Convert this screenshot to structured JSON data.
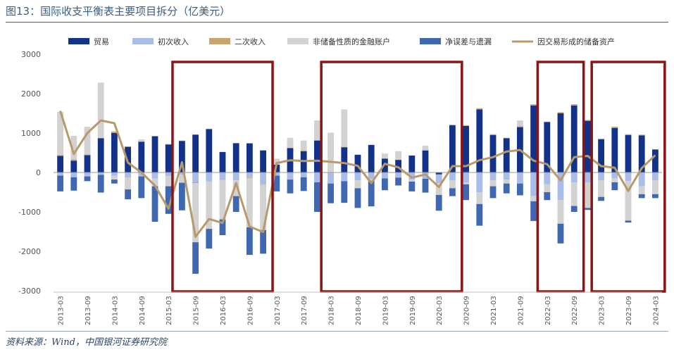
{
  "title": "图13：国际收支平衡表主要项目拆分（亿美元）",
  "source": "资料来源：Wind，中国银河证券研究院",
  "colors": {
    "trade": "#13328a",
    "primary_income": "#a9bde8",
    "secondary_income": "#c8a570",
    "financial": "#d2d2d2",
    "errors": "#3f68b0",
    "reserves_line": "#b9986a",
    "highlight_box": "#8b1414",
    "axis": "#bfbfbf"
  },
  "chart_data": {
    "type": "bar",
    "stacked": true,
    "ylim": [
      -3000,
      3000
    ],
    "yticks": [
      3000,
      2000,
      1000,
      0,
      -1000,
      -2000,
      -3000
    ],
    "legend_position": "top",
    "grid": false,
    "categories": [
      "2013-03",
      "2013-06",
      "2013-09",
      "2013-12",
      "2014-03",
      "2014-06",
      "2014-09",
      "2014-12",
      "2015-03",
      "2015-06",
      "2015-09",
      "2015-12",
      "2016-03",
      "2016-06",
      "2016-09",
      "2016-12",
      "2017-03",
      "2017-06",
      "2017-09",
      "2017-12",
      "2018-03",
      "2018-06",
      "2018-09",
      "2018-12",
      "2019-03",
      "2019-06",
      "2019-09",
      "2019-12",
      "2020-03",
      "2020-06",
      "2020-09",
      "2020-12",
      "2021-03",
      "2021-06",
      "2021-09",
      "2021-12",
      "2022-03",
      "2022-06",
      "2022-09",
      "2022-12",
      "2023-03",
      "2023-06",
      "2023-09",
      "2023-12",
      "2024-03"
    ],
    "tick_labels": [
      "2013-03",
      "2013-09",
      "2014-03",
      "2014-09",
      "2015-03",
      "2015-09",
      "2016-03",
      "2016-09",
      "2017-03",
      "2017-09",
      "2018-03",
      "2018-09",
      "2019-03",
      "2019-09",
      "2020-03",
      "2020-09",
      "2021-03",
      "2021-09",
      "2022-03",
      "2022-09",
      "2023-03",
      "2023-09",
      "2024-03"
    ],
    "series": [
      {
        "key": "trade",
        "name": "贸易",
        "values": [
          420,
          300,
          440,
          870,
          1000,
          650,
          780,
          920,
          710,
          800,
          960,
          1100,
          520,
          740,
          740,
          560,
          200,
          620,
          540,
          810,
          0,
          640,
          450,
          700,
          350,
          320,
          430,
          560,
          -50,
          1200,
          1180,
          1600,
          950,
          870,
          1150,
          1700,
          1280,
          1500,
          1700,
          1310,
          840,
          1130,
          950,
          940,
          580
        ]
      },
      {
        "key": "primary_income",
        "name": "初次收入",
        "values": [
          -80,
          -120,
          -100,
          -60,
          -80,
          -130,
          -100,
          -150,
          -90,
          -60,
          -250,
          -230,
          -180,
          -200,
          -120,
          -300,
          -80,
          -180,
          -120,
          -250,
          -280,
          -220,
          -200,
          -150,
          -150,
          -120,
          -180,
          -150,
          -220,
          -200,
          -250,
          -500,
          -200,
          -180,
          -280,
          -600,
          -300,
          -700,
          -250,
          -250,
          -200,
          -150,
          -220,
          -350,
          -200
        ]
      },
      {
        "key": "secondary_income",
        "name": "二次收入",
        "values": [
          20,
          30,
          20,
          10,
          40,
          10,
          10,
          0,
          10,
          10,
          -20,
          10,
          -10,
          10,
          -20,
          -10,
          0,
          10,
          20,
          10,
          10,
          10,
          0,
          -10,
          10,
          -10,
          0,
          -10,
          10,
          10,
          20,
          30,
          20,
          10,
          20,
          30,
          10,
          30,
          30,
          20,
          20,
          30,
          20,
          20,
          10
        ]
      },
      {
        "key": "financial",
        "name": "非储备性质的金融账户",
        "values": [
          1100,
          600,
          700,
          1400,
          -100,
          -300,
          50,
          -200,
          -260,
          -200,
          -1500,
          -1200,
          -1000,
          -400,
          -1250,
          -1150,
          150,
          250,
          250,
          500,
          1000,
          950,
          -200,
          -50,
          120,
          220,
          -50,
          120,
          -300,
          -200,
          -50,
          -300,
          -150,
          -100,
          150,
          -130,
          -200,
          -600,
          -600,
          -650,
          -420,
          -100,
          -1000,
          -200,
          -350
        ]
      },
      {
        "key": "errors",
        "name": "净误差与遗漏",
        "values": [
          -400,
          -340,
          -120,
          -450,
          -100,
          -250,
          -550,
          -900,
          -700,
          -700,
          -800,
          -500,
          -400,
          -400,
          -700,
          -600,
          -400,
          -350,
          -350,
          -750,
          -500,
          -550,
          -500,
          -650,
          -300,
          -200,
          -250,
          -350,
          -400,
          -200,
          -400,
          -550,
          -300,
          -250,
          -300,
          -500,
          -200,
          -500,
          -150,
          -50,
          -100,
          -200,
          -50,
          -100,
          -100
        ]
      }
    ],
    "line": {
      "key": "reserves",
      "name": "因交易形成的储备资产",
      "values": [
        1560,
        470,
        1000,
        1320,
        1250,
        250,
        0,
        -330,
        -920,
        260,
        -1630,
        -1180,
        -1280,
        -270,
        -1370,
        -1510,
        240,
        310,
        290,
        300,
        270,
        240,
        170,
        -270,
        220,
        130,
        -130,
        -50,
        -370,
        160,
        160,
        310,
        390,
        530,
        570,
        300,
        210,
        -200,
        390,
        420,
        160,
        120,
        -470,
        110,
        440
      ]
    },
    "highlight_ranges": [
      [
        "2015-06",
        "2016-12"
      ],
      [
        "2018-03",
        "2020-06"
      ],
      [
        "2022-03",
        "2022-09"
      ],
      [
        "2023-03",
        "2024-03"
      ]
    ]
  }
}
